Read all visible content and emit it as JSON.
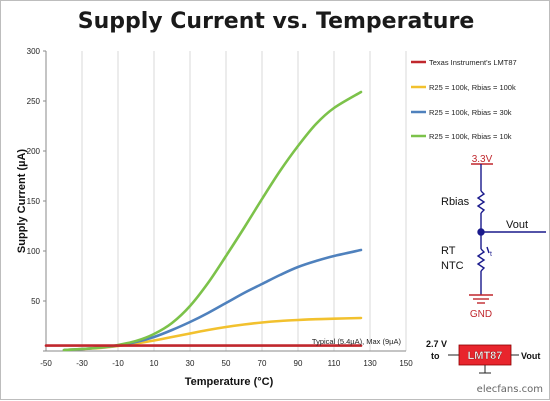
{
  "chart_data": {
    "type": "line",
    "title": "Supply Current vs. Temperature",
    "xlabel": "Temperature (°C)",
    "ylabel": "Supply Current (µA)",
    "xlim": [
      -50,
      150
    ],
    "ylim": [
      0,
      300
    ],
    "xticks": [
      -50,
      -30,
      -10,
      10,
      30,
      50,
      70,
      90,
      110,
      130,
      150
    ],
    "yticks": [
      0,
      50,
      100,
      150,
      200,
      250,
      300
    ],
    "x_tick_labels": [
      "-50",
      "-30",
      "-10",
      "10",
      "30",
      "50",
      "70",
      "90",
      "110",
      "130",
      "150"
    ],
    "y_tick_labels": [
      "",
      "50",
      "100",
      "150",
      "200",
      "250",
      "300"
    ],
    "grid": "vertical",
    "legend_position": "right",
    "series": [
      {
        "name": "Texas Instrument's LMT87",
        "color": "#c0272d",
        "x": [
          -50,
          125
        ],
        "y": [
          5.4,
          5.4
        ]
      },
      {
        "name": "R25 = 100k, Rbias = 100k",
        "color": "#f2c12e",
        "x": [
          -40,
          -30,
          -20,
          -10,
          0,
          10,
          20,
          30,
          40,
          50,
          60,
          70,
          80,
          90,
          100,
          110,
          125
        ],
        "y": [
          1,
          2,
          3,
          5,
          7.5,
          10.5,
          14,
          17.5,
          21,
          24,
          26.5,
          28.5,
          30,
          31,
          31.8,
          32.3,
          33
        ]
      },
      {
        "name": "R25 = 100k, Rbias = 30k",
        "color": "#4f81bd",
        "x": [
          -40,
          -30,
          -20,
          -10,
          0,
          10,
          20,
          30,
          40,
          50,
          60,
          70,
          80,
          90,
          100,
          110,
          125
        ],
        "y": [
          1,
          2,
          3.5,
          5.5,
          9,
          14,
          21,
          29,
          38,
          48,
          58,
          67,
          76,
          84,
          90,
          95,
          101
        ]
      },
      {
        "name": "R25 = 100k, Rbias = 10k",
        "color": "#7cc24a",
        "x": [
          -40,
          -30,
          -20,
          -10,
          0,
          10,
          20,
          30,
          40,
          50,
          60,
          70,
          80,
          90,
          100,
          110,
          125
        ],
        "y": [
          1,
          2,
          3.5,
          6,
          10,
          17,
          28,
          45,
          68,
          95,
          123,
          152,
          180,
          205,
          227,
          243,
          259
        ]
      }
    ],
    "annotations": [
      "Typical (5.4µA), Max (9µA)"
    ]
  },
  "schematic": {
    "supply_label": "3.3V",
    "rbias_label": "Rbias",
    "vout_label": "Vout",
    "rt_label": "RT",
    "ntc_label": "NTC",
    "gnd_label": "GND",
    "t_label": "t"
  },
  "chip": {
    "name": "LMT87",
    "input_voltage": "2.7 V",
    "to_label": "to",
    "vout_label": "Vout"
  },
  "watermark": "elecfans.com"
}
